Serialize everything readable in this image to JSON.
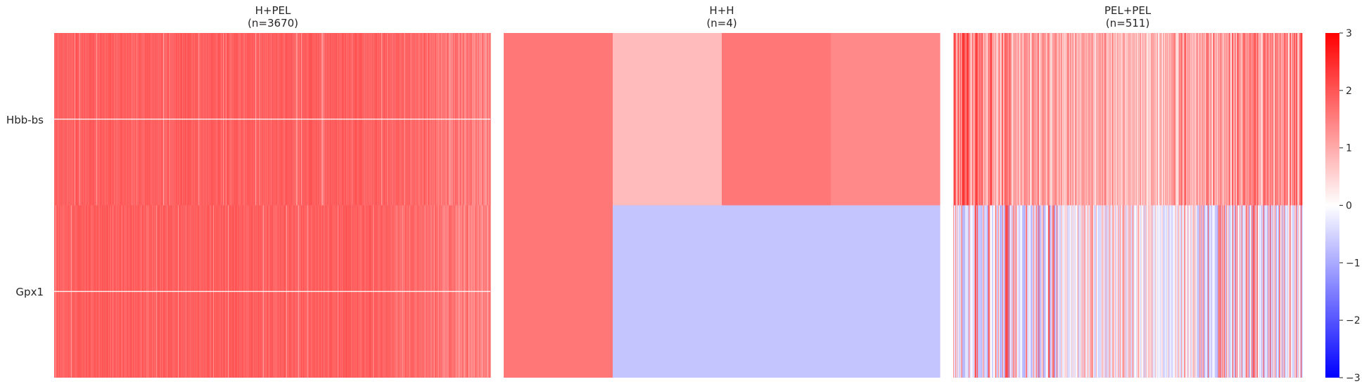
{
  "chart_data": {
    "type": "heatmap",
    "rows": [
      "Hbb-bs",
      "Gpx1"
    ],
    "panels": [
      {
        "title": "H+PEL",
        "subtitle": "(n=3670)",
        "n": 3670,
        "summary": {
          "Hbb-bs": {
            "typical": 2.0,
            "low": 1.1,
            "high": 2.4
          },
          "Gpx1": {
            "typical": 2.0,
            "low": 1.0,
            "high": 2.4
          }
        },
        "note_values": "per-cell values approximated: mostly ~1.5-2.5, lighter (~1.0) toward right edge"
      },
      {
        "title": "H+H",
        "subtitle": "(n=4)",
        "n": 4,
        "cells": {
          "Hbb-bs": [
            1.6,
            0.8,
            1.6,
            1.4
          ],
          "Gpx1": [
            1.6,
            -0.7,
            -0.7,
            -0.7
          ]
        }
      },
      {
        "title": "PEL+PEL",
        "subtitle": "(n=511)",
        "n": 511,
        "summary": {
          "Hbb-bs": {
            "typical": 1.0,
            "low": 0.0,
            "high": 2.6
          },
          "Gpx1": {
            "typical": 0.0,
            "low": -1.2,
            "high": 2.6
          }
        }
      }
    ],
    "colorbar": {
      "cmap": "bwr",
      "vmin": -3,
      "vmax": 3,
      "ticks": [
        "3",
        "2",
        "1",
        "0",
        "−1",
        "−2",
        "−3"
      ]
    },
    "row_separators": true
  }
}
